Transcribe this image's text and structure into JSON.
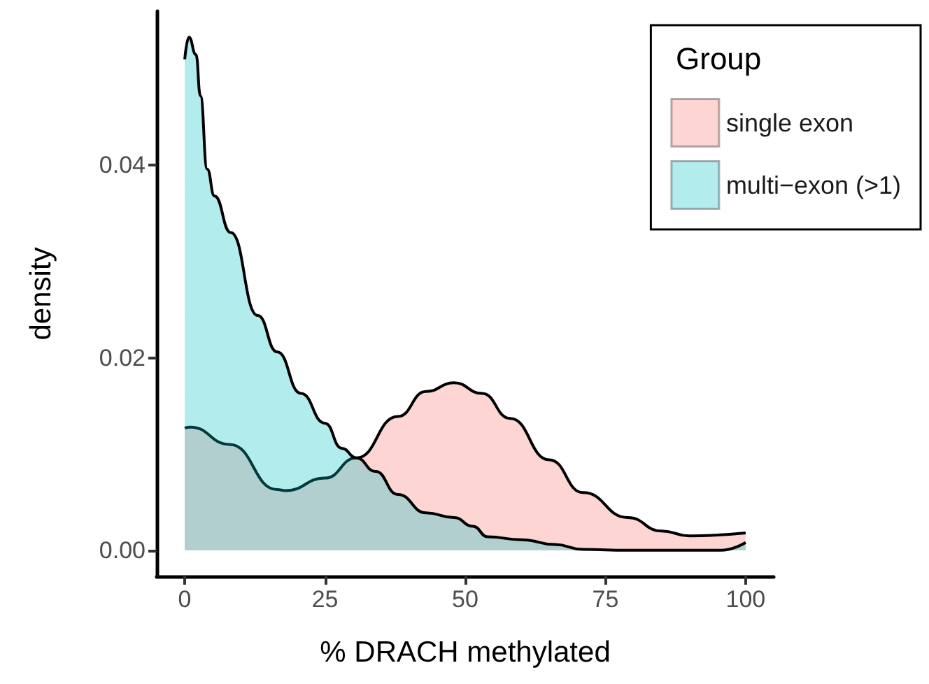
{
  "chart_data": {
    "type": "area",
    "xlabel": "% DRACH methylated",
    "ylabel": "density",
    "legend_title": "Group",
    "legend": "top right",
    "grid": false,
    "xlim": [
      -5,
      105
    ],
    "xticks": [
      0,
      25,
      50,
      75,
      100
    ],
    "ylim": [
      -0.0027,
      0.056
    ],
    "yticks": [
      {
        "value": 0,
        "label": "0.00"
      },
      {
        "value": 0.02,
        "label": "0.02"
      },
      {
        "value": 0.04,
        "label": "0.04"
      }
    ],
    "series": [
      {
        "name": "single exon",
        "color": "#f8766d",
        "x": [
          0,
          1,
          8,
          16.5,
          18,
          25,
          30.6,
          38,
          43,
          48,
          53,
          58,
          65,
          71,
          79,
          85,
          90,
          100
        ],
        "values": [
          0.0127,
          0.0128,
          0.011,
          0.0063,
          0.0062,
          0.0075,
          0.0096,
          0.0139,
          0.0165,
          0.0174,
          0.0163,
          0.0137,
          0.0094,
          0.006,
          0.0034,
          0.002,
          0.0015,
          0.0018
        ]
      },
      {
        "name": "multi−exon (>1)",
        "color": "#00bfc4",
        "x": [
          0,
          0.75,
          2,
          2.8,
          4,
          5.3,
          8.2,
          13,
          16.5,
          20.7,
          25,
          28,
          30.6,
          34,
          38,
          43,
          48,
          51.4,
          54,
          60,
          66,
          71,
          79,
          95.5,
          100
        ],
        "values": [
          0.051,
          0.0533,
          0.0515,
          0.0472,
          0.0396,
          0.0368,
          0.033,
          0.0244,
          0.0206,
          0.0163,
          0.0132,
          0.0106,
          0.0096,
          0.0082,
          0.0058,
          0.0039,
          0.0034,
          0.0025,
          0.0014,
          0.0011,
          0.0006,
          0.0001,
          0,
          0,
          0.0008
        ]
      }
    ]
  }
}
